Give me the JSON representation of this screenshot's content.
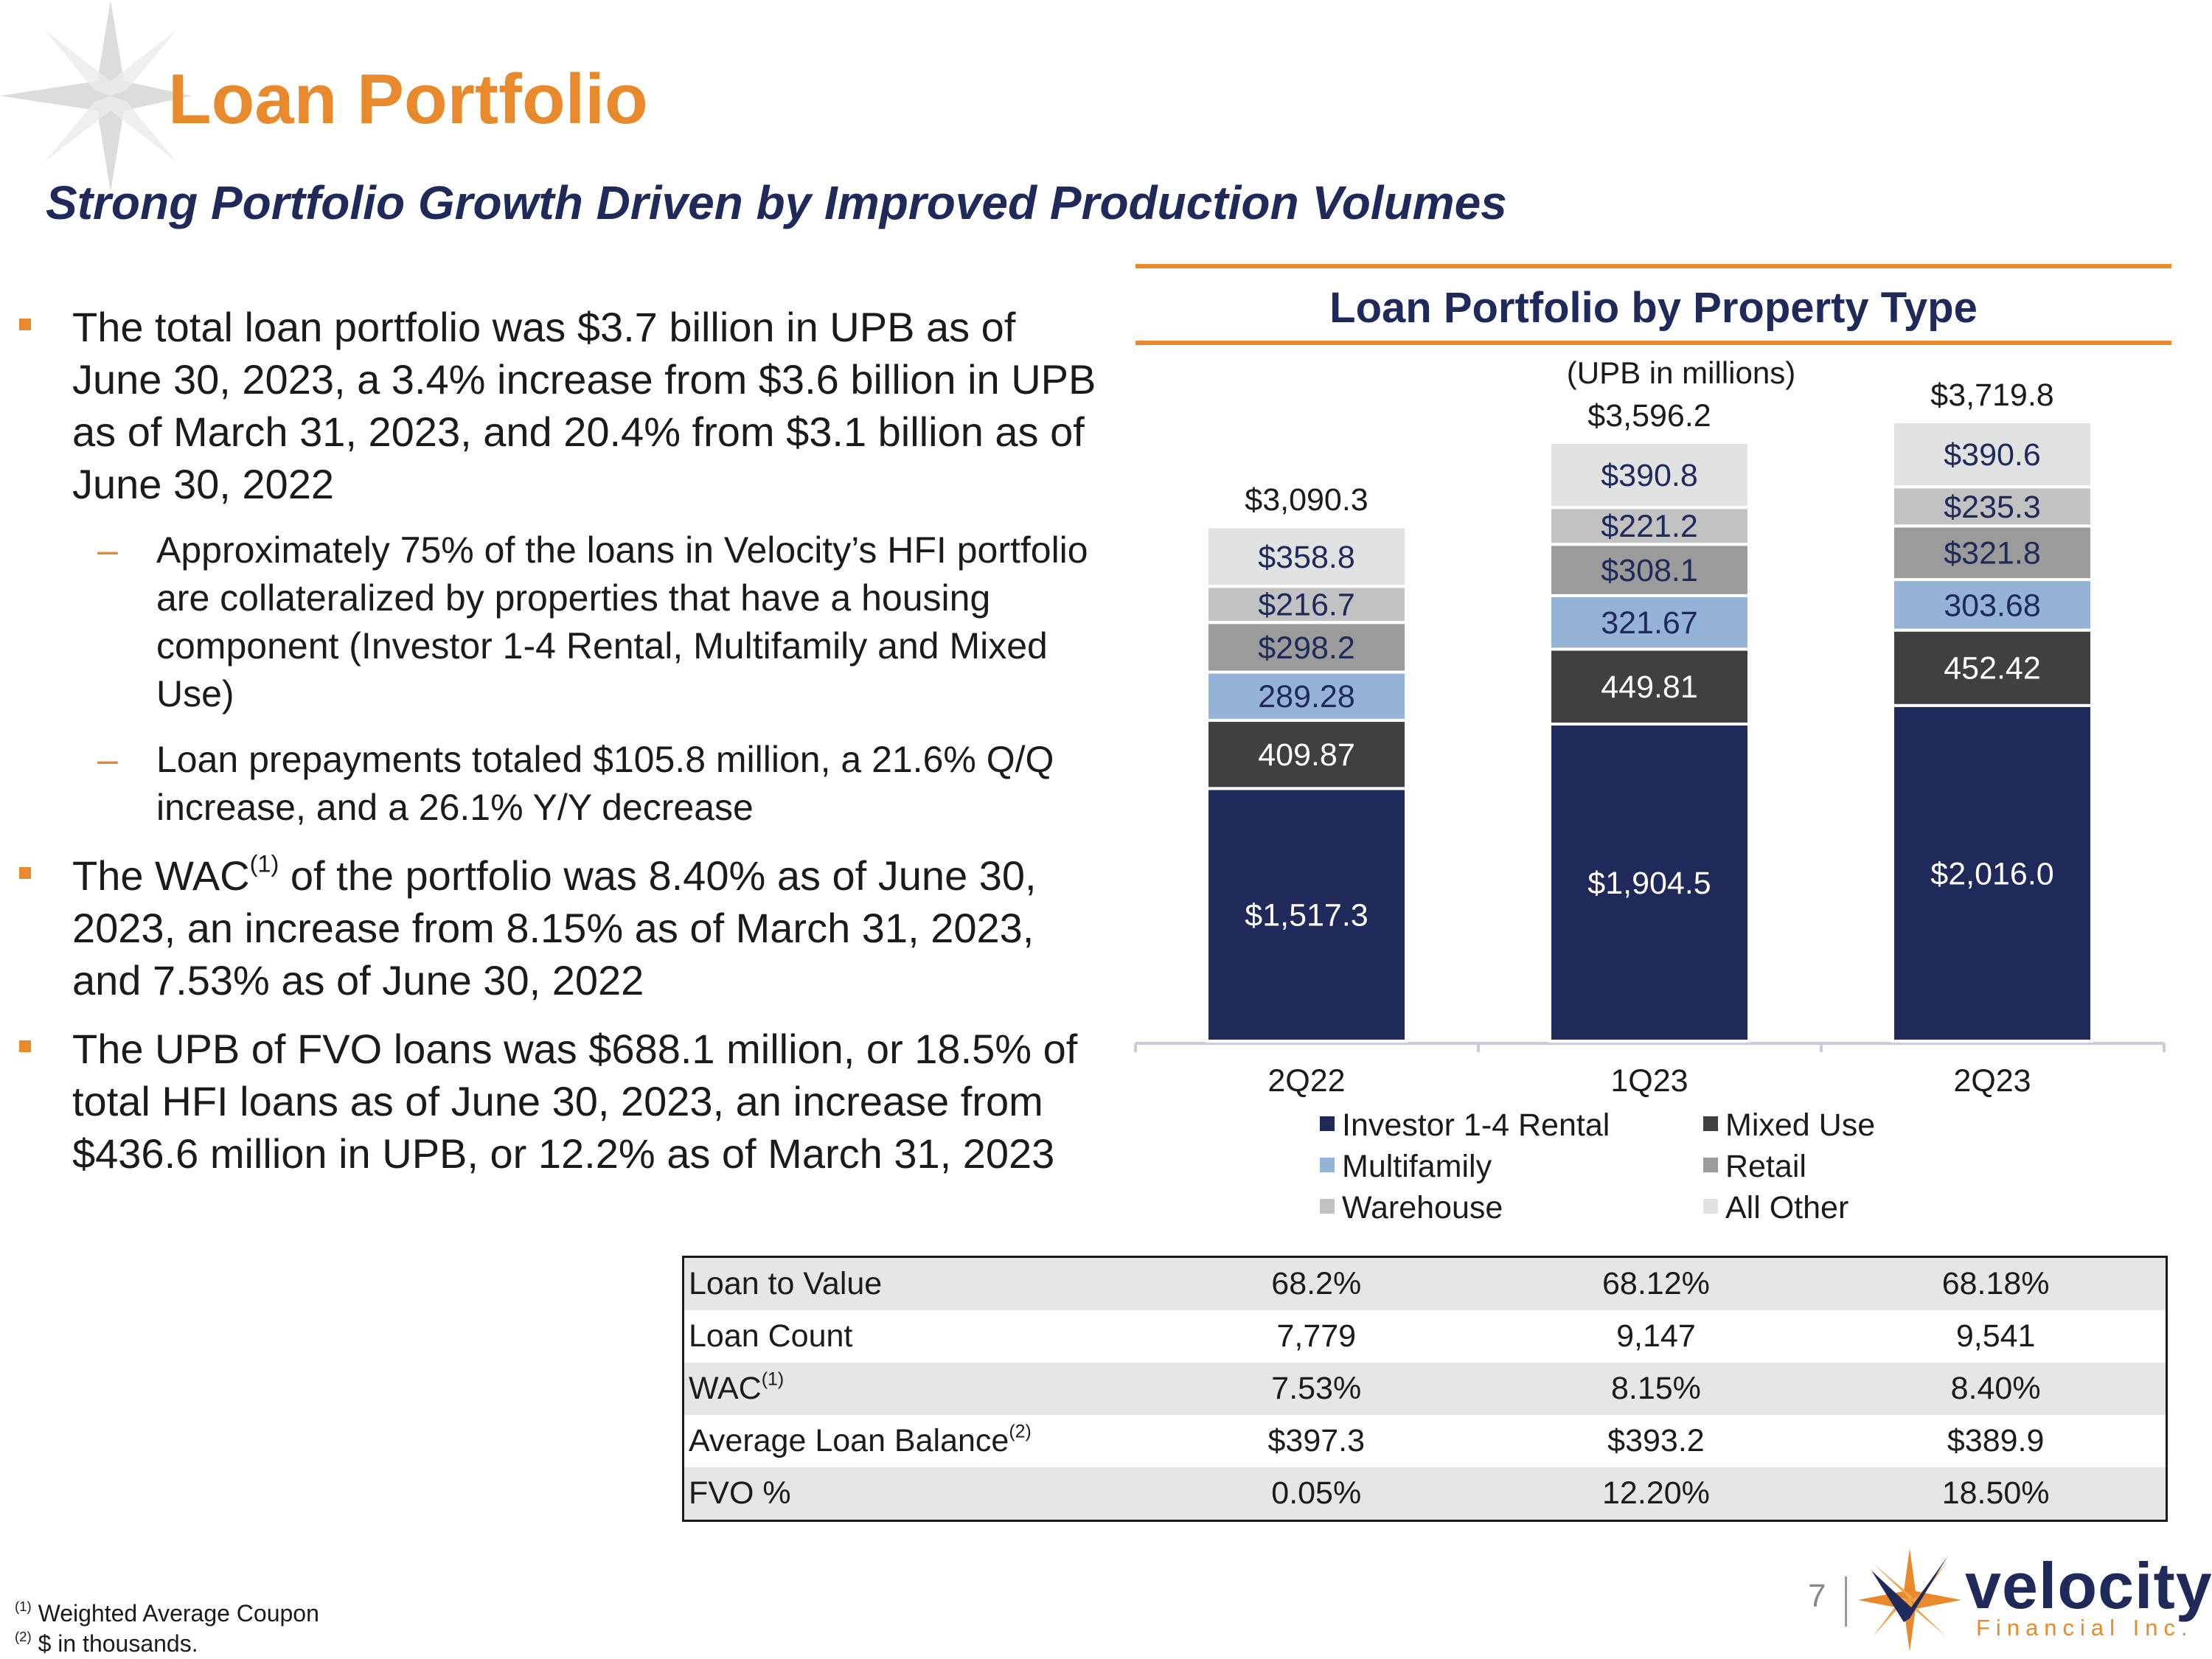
{
  "title": "Loan Portfolio",
  "subtitle": "Strong Portfolio Growth Driven by Improved Production Volumes",
  "bullets": {
    "b1": "The total loan portfolio was $3.7 billion in UPB as of June 30, 2023, a 3.4% increase from $3.6 billion in UPB as of March 31, 2023, and 20.4% from $3.1 billion as of June 30, 2022",
    "b1_sub1": "Approximately 75% of the loans in Velocity’s HFI portfolio are collateralized by properties that have a housing component (Investor 1-4 Rental, Multifamily and Mixed Use)",
    "b1_sub2": "Loan prepayments totaled $105.8 million, a 21.6% Q/Q increase, and a 26.1% Y/Y decrease",
    "b2_pre": "The WAC",
    "b2_sup": "(1)",
    "b2_post": " of the portfolio was 8.40% as of June 30, 2023, an increase from 8.15% as of March 31, 2023, and 7.53% as of June 30, 2022",
    "b3": "The UPB of FVO loans was $688.1 million, or 18.5% of total HFI loans as of June 30, 2023, an increase from $436.6 million in UPB, or 12.2% as of March 31, 2023"
  },
  "chart_data": {
    "type": "bar",
    "stacked": true,
    "title": "Loan Portfolio by Property Type",
    "unit_label": "(UPB in millions)",
    "categories": [
      "2Q22",
      "1Q23",
      "2Q23"
    ],
    "totals": [
      3090.3,
      3596.2,
      3719.8
    ],
    "total_labels": [
      "$3,090.3",
      "$3,596.2",
      "$3,719.8"
    ],
    "series": [
      {
        "name": "Investor 1-4 Rental",
        "color": "#1f2a5a",
        "label_color": "#ffffff",
        "values": [
          1517.3,
          1904.5,
          2016.0
        ],
        "labels": [
          "$1,517.3",
          "$1,904.5",
          "$2,016.0"
        ]
      },
      {
        "name": "Mixed Use",
        "color": "#404040",
        "label_color": "#ffffff",
        "values": [
          409.87,
          449.81,
          452.42
        ],
        "labels": [
          "409.87",
          "449.81",
          "452.42"
        ]
      },
      {
        "name": "Multifamily",
        "color": "#95b3d7",
        "label_color": "#1f2a5a",
        "values": [
          289.28,
          321.67,
          303.68
        ],
        "labels": [
          "289.28",
          "321.67",
          "303.68"
        ]
      },
      {
        "name": "Retail",
        "color": "#9b9b9b",
        "label_color": "#1f2a5a",
        "values": [
          298.2,
          308.1,
          321.8
        ],
        "labels": [
          "$298.2",
          "$308.1",
          "$321.8"
        ]
      },
      {
        "name": "Warehouse",
        "color": "#c2c2c2",
        "label_color": "#1f2a5a",
        "values": [
          216.7,
          221.2,
          235.3
        ],
        "labels": [
          "$216.7",
          "$221.2",
          "$235.3"
        ]
      },
      {
        "name": "All Other",
        "color": "#e1e2e2",
        "label_color": "#1f2a5a",
        "values": [
          358.8,
          390.8,
          390.6
        ],
        "labels": [
          "$358.8",
          "$390.8",
          "$390.6"
        ]
      }
    ],
    "legend_order": [
      "Investor 1-4 Rental",
      "Mixed Use",
      "Multifamily",
      "Retail",
      "Warehouse",
      "All Other"
    ],
    "ylim": [
      0,
      3900
    ]
  },
  "table": {
    "rows": [
      {
        "label": "Loan to Value",
        "sup": "",
        "values": [
          "68.2%",
          "68.12%",
          "68.18%"
        ]
      },
      {
        "label": "Loan Count",
        "sup": "",
        "values": [
          "7,779",
          "9,147",
          "9,541"
        ]
      },
      {
        "label": "WAC",
        "sup": "(1)",
        "values": [
          "7.53%",
          "8.15%",
          "8.40%"
        ]
      },
      {
        "label": "Average Loan Balance",
        "sup": "(2)",
        "values": [
          "$397.3",
          "$393.2",
          "$389.9"
        ]
      },
      {
        "label": "FVO %",
        "sup": "",
        "values": [
          "0.05%",
          "12.20%",
          "18.50%"
        ]
      }
    ]
  },
  "footnotes": {
    "f1_sup": "(1)",
    "f1": " Weighted Average Coupon",
    "f2_sup": "(2)",
    "f2": " $ in thousands."
  },
  "page_number": "7",
  "logo": {
    "word": "velocity",
    "sub": "Financial Inc."
  },
  "colors": {
    "accent": "#e8892b",
    "navy": "#1f2a5a"
  }
}
